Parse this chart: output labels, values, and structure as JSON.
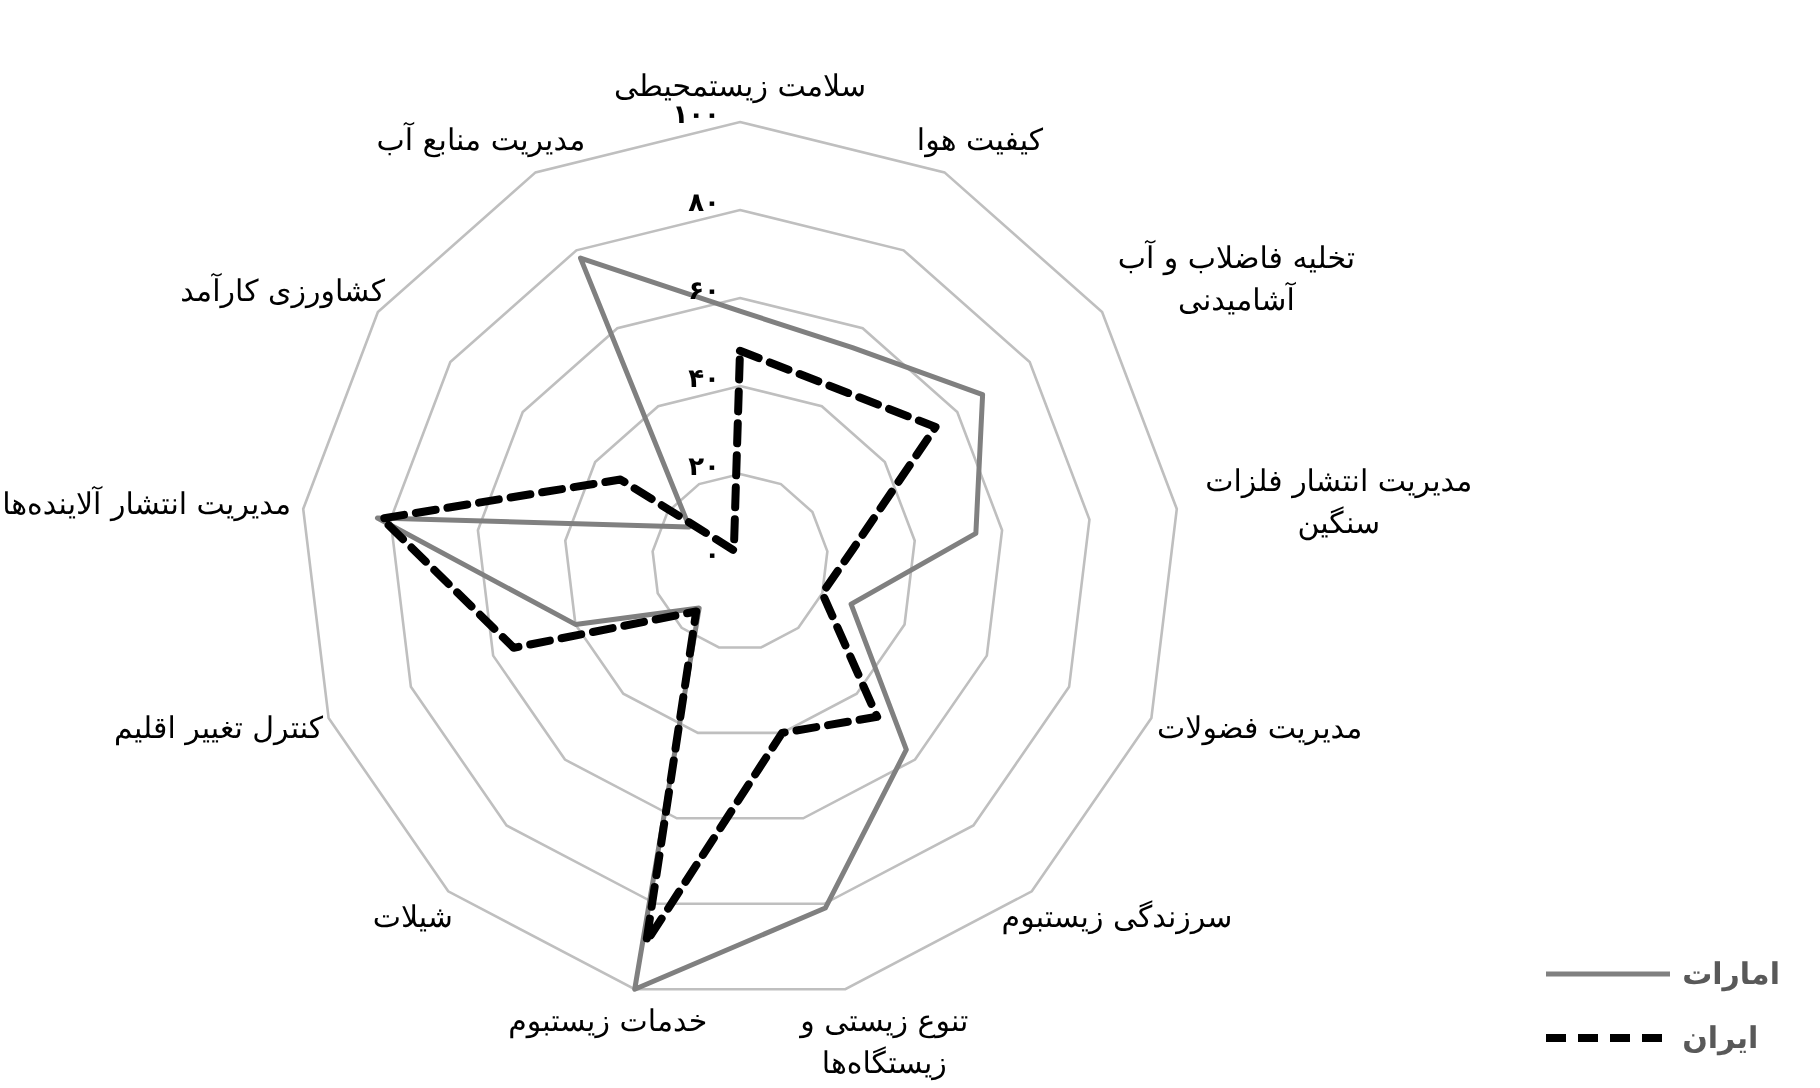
{
  "chart_data": {
    "type": "radar",
    "categories": [
      "سلامت زیستمحیطی",
      "کیفیت هوا",
      "تخلیه فاضلاب و آب آشامیدنی",
      "مدیریت انتشار فلزات سنگین",
      "مدیریت فضولات",
      "سرزندگی زیستبوم",
      "تنوع زیستی و زیستگاه‌ها",
      "خدمات زیستبوم",
      "شیلات",
      "کنترل تغییر اقلیم",
      "مدیریت انتشار آلاینده‌ها",
      "کشاورزی کارآمد",
      "مدیریت منابع آب"
    ],
    "series": [
      {
        "name": "امارات",
        "color": "#808080",
        "line_style": "solid",
        "values": [
          57,
          55,
          67,
          54,
          27,
          57,
          81,
          100,
          14,
          40,
          83,
          14,
          78
        ]
      },
      {
        "name": "ایران",
        "color": "#000000",
        "line_style": "dashed",
        "values": [
          48,
          45,
          54,
          26,
          20,
          47,
          40,
          89,
          15,
          55,
          82,
          33,
          3
        ]
      }
    ],
    "ylim": [
      0,
      100
    ],
    "yticks": [
      {
        "value": 0,
        "label": "۰"
      },
      {
        "value": 20,
        "label": "۲۰"
      },
      {
        "value": 40,
        "label": "۴۰"
      },
      {
        "value": 60,
        "label": "۶۰"
      },
      {
        "value": 80,
        "label": "۸۰"
      },
      {
        "value": 100,
        "label": "۱۰۰"
      }
    ],
    "grid": true,
    "legend": "bottom right"
  }
}
